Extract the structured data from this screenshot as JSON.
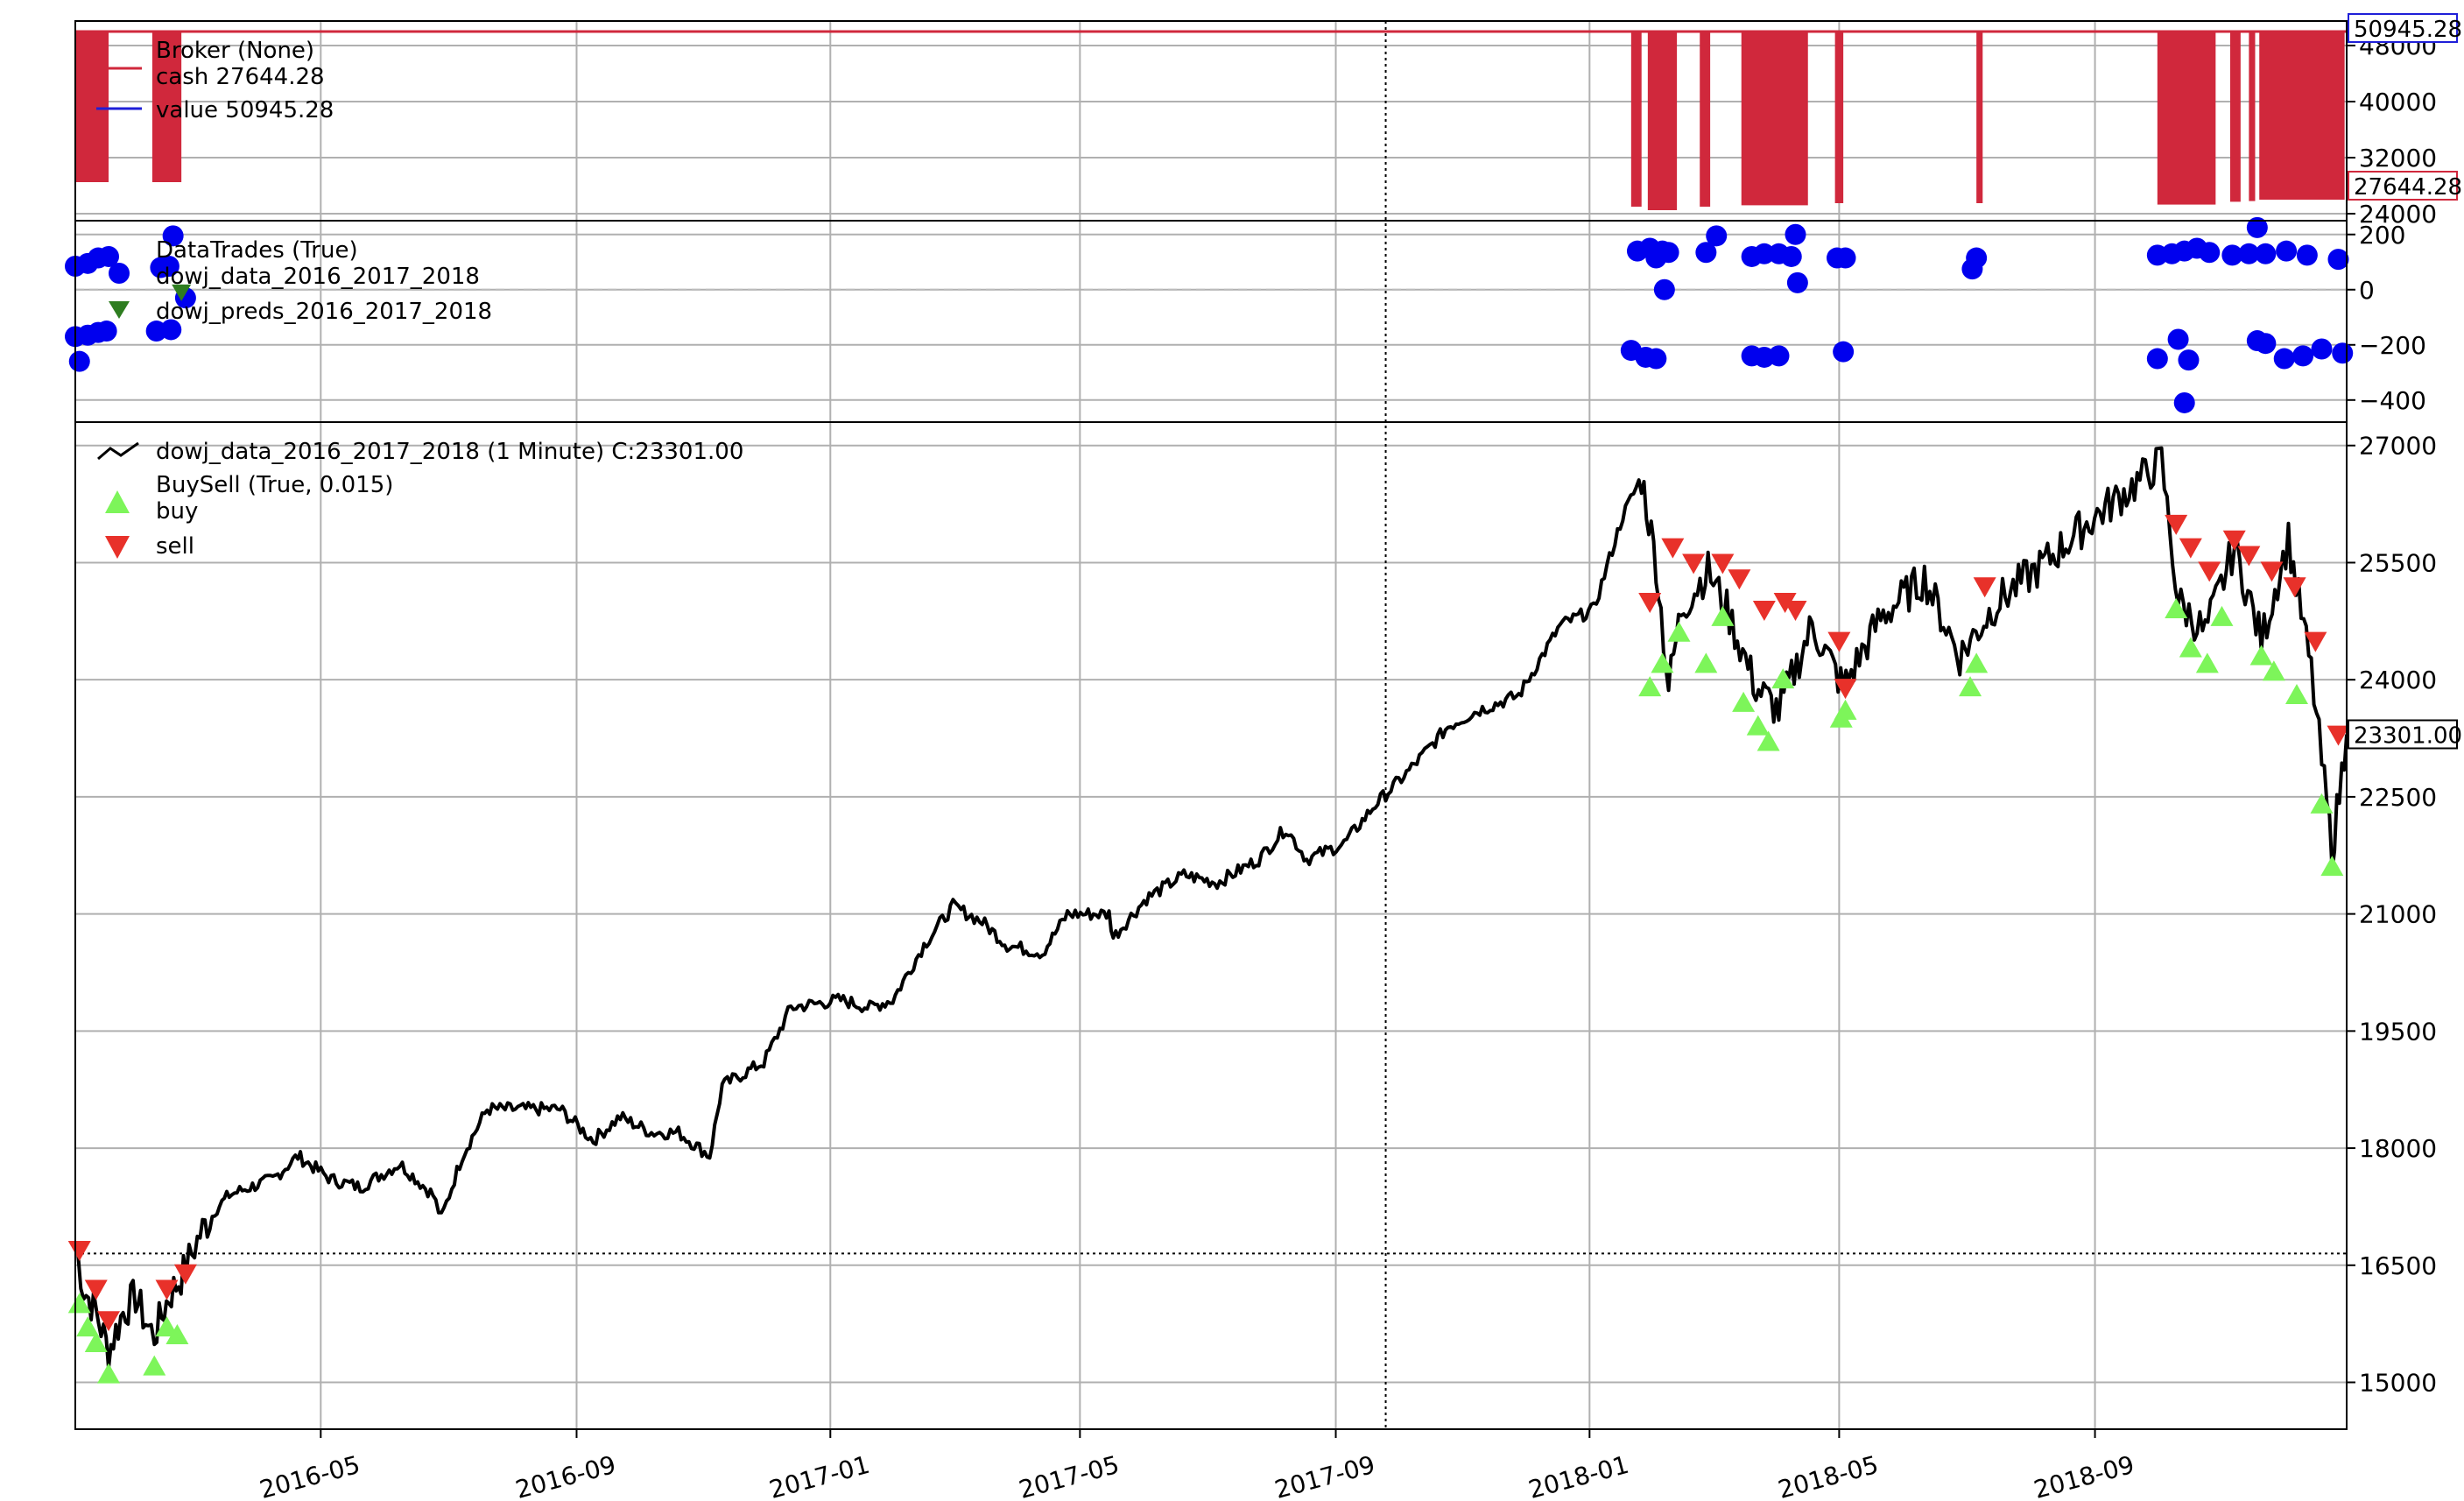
{
  "colors": {
    "cash": "#d0283c",
    "value": "#1f1fd8",
    "close": "#000000",
    "trade_dot": "#0000ee",
    "trade_marker": "#2e7d20",
    "buy": "#7df55a",
    "sell": "#e8312a",
    "grid": "#b0b0b0",
    "frame": "#000000"
  },
  "chart_data": {
    "type": "line",
    "x_ticks": [
      "2016-05",
      "2016-09",
      "2017-01",
      "2017-05",
      "2017-09",
      "2018-01",
      "2018-05",
      "2018-09"
    ],
    "xlim": [
      "2016-01-04",
      "2018-12-31"
    ],
    "vline_date": "2017-09-25",
    "panels": {
      "broker": {
        "title": "Broker (None)",
        "legend": [
          {
            "key": "cash",
            "label": "cash 27644.28"
          },
          {
            "key": "value",
            "label": "value 50945.28"
          }
        ],
        "y_ticks": [
          24000,
          32000,
          40000,
          48000
        ],
        "y_tick_labels": [
          "24000",
          "32000",
          "40000",
          "48000"
        ],
        "ylim": [
          23000,
          51500
        ],
        "value_badge": "50945.28",
        "cash_badge": "27644.28",
        "value_level": 50000,
        "cash_high": 50000,
        "cash_low_levels": [
          24500,
          30500
        ],
        "cash_drop_intervals": [
          [
            "2016-01-04",
            "2016-01-20",
            28500
          ],
          [
            "2016-02-10",
            "2016-02-24",
            28500
          ],
          [
            "2018-01-21",
            "2018-01-26",
            25000
          ],
          [
            "2018-01-29",
            "2018-02-12",
            24500
          ],
          [
            "2018-02-23",
            "2018-02-28",
            25000
          ],
          [
            "2018-03-15",
            "2018-04-16",
            25200
          ],
          [
            "2018-04-29",
            "2018-05-03",
            25500
          ],
          [
            "2018-07-06",
            "2018-07-09",
            25500
          ],
          [
            "2018-10-01",
            "2018-10-29",
            25300
          ],
          [
            "2018-11-05",
            "2018-11-10",
            25700
          ],
          [
            "2018-11-14",
            "2018-11-17",
            25800
          ],
          [
            "2018-11-19",
            "2018-12-30",
            26000
          ]
        ]
      },
      "trades": {
        "title": "DataTrades (True)",
        "legend": [
          {
            "key": "trade_dot",
            "label": "dowj_data_2016_2017_2018"
          },
          {
            "key": "trade_marker",
            "label": "dowj_preds_2016_2017_2018"
          }
        ],
        "y_ticks": [
          -400,
          -200,
          0,
          200
        ],
        "y_tick_labels": [
          "−400",
          "−200",
          "0",
          "200"
        ],
        "ylim": [
          -480,
          250
        ],
        "points": [
          [
            "2016-01-04",
            85
          ],
          [
            "2016-01-10",
            95
          ],
          [
            "2016-01-15",
            115
          ],
          [
            "2016-01-20",
            120
          ],
          [
            "2016-01-04",
            -170
          ],
          [
            "2016-01-10",
            -165
          ],
          [
            "2016-01-15",
            -155
          ],
          [
            "2016-01-19",
            -150
          ],
          [
            "2016-01-06",
            -260
          ],
          [
            "2016-02-12",
            -150
          ],
          [
            "2016-02-19",
            -145
          ],
          [
            "2016-02-14",
            80
          ],
          [
            "2016-02-18",
            85
          ],
          [
            "2016-02-20",
            195
          ],
          [
            "2016-02-26",
            -30
          ],
          [
            "2018-01-24",
            140
          ],
          [
            "2018-01-30",
            150
          ],
          [
            "2018-02-05",
            140
          ],
          [
            "2018-02-08",
            135
          ],
          [
            "2018-02-02",
            115
          ],
          [
            "2018-02-06",
            0
          ],
          [
            "2018-02-26",
            135
          ],
          [
            "2018-03-03",
            195
          ],
          [
            "2018-03-20",
            120
          ],
          [
            "2018-03-26",
            130
          ],
          [
            "2018-04-02",
            130
          ],
          [
            "2018-04-08",
            120
          ],
          [
            "2018-04-10",
            200
          ],
          [
            "2018-04-11",
            25
          ],
          [
            "2018-04-30",
            115
          ],
          [
            "2018-05-04",
            115
          ],
          [
            "2018-01-21",
            -220
          ],
          [
            "2018-01-28",
            -245
          ],
          [
            "2018-02-02",
            -250
          ],
          [
            "2018-03-20",
            -240
          ],
          [
            "2018-03-26",
            -245
          ],
          [
            "2018-04-02",
            -240
          ],
          [
            "2018-05-03",
            -225
          ],
          [
            "2018-07-06",
            115
          ],
          [
            "2018-07-04",
            75
          ],
          [
            "2018-10-01",
            125
          ],
          [
            "2018-10-08",
            130
          ],
          [
            "2018-10-14",
            140
          ],
          [
            "2018-10-20",
            150
          ],
          [
            "2018-10-26",
            135
          ],
          [
            "2018-11-06",
            125
          ],
          [
            "2018-11-14",
            130
          ],
          [
            "2018-11-22",
            130
          ],
          [
            "2018-11-18",
            225
          ],
          [
            "2018-12-02",
            140
          ],
          [
            "2018-12-12",
            125
          ],
          [
            "2018-12-27",
            110
          ],
          [
            "2018-10-01",
            -250
          ],
          [
            "2018-10-11",
            -180
          ],
          [
            "2018-10-16",
            -255
          ],
          [
            "2018-10-14",
            -410
          ],
          [
            "2018-11-18",
            -185
          ],
          [
            "2018-11-22",
            -195
          ],
          [
            "2018-12-01",
            -250
          ],
          [
            "2018-12-10",
            -240
          ],
          [
            "2018-12-19",
            -215
          ],
          [
            "2018-12-29",
            -230
          ]
        ],
        "pred_markers": [
          [
            "2016-02-24",
            -10
          ]
        ]
      },
      "price": {
        "title": "dowj_data_2016_2017_2018 (1 Minute) C:23301.00",
        "legend_title": "BuySell (True, 0.015)",
        "legend": [
          {
            "key": "buy",
            "label": "buy"
          },
          {
            "key": "sell",
            "label": "sell"
          }
        ],
        "y_ticks": [
          15000,
          16500,
          18000,
          19500,
          21000,
          22500,
          24000,
          25500,
          27000
        ],
        "y_tick_labels": [
          "15000",
          "16500",
          "18000",
          "19500",
          "21000",
          "22500",
          "24000",
          "25500",
          "27000"
        ],
        "ylim": [
          14400,
          27300
        ],
        "hline_value": 16650,
        "close_badge": "23301.00",
        "close_points": [
          [
            "2016-01-04",
            16800
          ],
          [
            "2016-01-08",
            16200
          ],
          [
            "2016-01-14",
            15900
          ],
          [
            "2016-01-20",
            15400
          ],
          [
            "2016-01-27",
            15900
          ],
          [
            "2016-02-02",
            16100
          ],
          [
            "2016-02-08",
            15700
          ],
          [
            "2016-02-11",
            15600
          ],
          [
            "2016-02-18",
            16100
          ],
          [
            "2016-02-25",
            16400
          ],
          [
            "2016-03-04",
            16900
          ],
          [
            "2016-03-11",
            17200
          ],
          [
            "2016-03-18",
            17400
          ],
          [
            "2016-03-28",
            17500
          ],
          [
            "2016-04-08",
            17600
          ],
          [
            "2016-04-20",
            17900
          ],
          [
            "2016-05-06",
            17600
          ],
          [
            "2016-05-20",
            17500
          ],
          [
            "2016-06-08",
            17800
          ],
          [
            "2016-06-24",
            17400
          ],
          [
            "2016-06-28",
            17100
          ],
          [
            "2016-07-08",
            17900
          ],
          [
            "2016-07-20",
            18500
          ],
          [
            "2016-08-10",
            18500
          ],
          [
            "2016-08-24",
            18500
          ],
          [
            "2016-09-09",
            18100
          ],
          [
            "2016-09-22",
            18400
          ],
          [
            "2016-10-07",
            18200
          ],
          [
            "2016-10-20",
            18200
          ],
          [
            "2016-11-04",
            17900
          ],
          [
            "2016-11-10",
            18800
          ],
          [
            "2016-11-30",
            19100
          ],
          [
            "2016-12-13",
            19800
          ],
          [
            "2017-01-06",
            19900
          ],
          [
            "2017-01-20",
            19800
          ],
          [
            "2017-01-31",
            19900
          ],
          [
            "2017-02-15",
            20600
          ],
          [
            "2017-03-01",
            21100
          ],
          [
            "2017-03-15",
            20900
          ],
          [
            "2017-03-27",
            20600
          ],
          [
            "2017-04-13",
            20500
          ],
          [
            "2017-04-25",
            21000
          ],
          [
            "2017-05-15",
            21000
          ],
          [
            "2017-05-17",
            20700
          ],
          [
            "2017-06-02",
            21200
          ],
          [
            "2017-06-20",
            21500
          ],
          [
            "2017-07-06",
            21400
          ],
          [
            "2017-07-26",
            21700
          ],
          [
            "2017-08-08",
            22100
          ],
          [
            "2017-08-18",
            21700
          ],
          [
            "2017-09-05",
            21900
          ],
          [
            "2017-09-20",
            22400
          ],
          [
            "2017-10-05",
            22800
          ],
          [
            "2017-10-25",
            23400
          ],
          [
            "2017-11-08",
            23600
          ],
          [
            "2017-11-28",
            23800
          ],
          [
            "2017-12-18",
            24700
          ],
          [
            "2018-01-03",
            24900
          ],
          [
            "2018-01-17",
            26100
          ],
          [
            "2018-01-26",
            26600
          ],
          [
            "2018-02-02",
            25500
          ],
          [
            "2018-02-08",
            23900
          ],
          [
            "2018-02-14",
            24900
          ],
          [
            "2018-02-27",
            25400
          ],
          [
            "2018-03-08",
            24900
          ],
          [
            "2018-03-22",
            23900
          ],
          [
            "2018-04-02",
            23600
          ],
          [
            "2018-04-18",
            24700
          ],
          [
            "2018-05-03",
            23900
          ],
          [
            "2018-05-21",
            24800
          ],
          [
            "2018-06-11",
            25300
          ],
          [
            "2018-06-28",
            24300
          ],
          [
            "2018-07-16",
            25000
          ],
          [
            "2018-08-08",
            25500
          ],
          [
            "2018-08-28",
            26000
          ],
          [
            "2018-09-20",
            26500
          ],
          [
            "2018-10-03",
            26800
          ],
          [
            "2018-10-11",
            25000
          ],
          [
            "2018-10-24",
            24600
          ],
          [
            "2018-11-07",
            25700
          ],
          [
            "2018-11-20",
            24500
          ],
          [
            "2018-12-03",
            25800
          ],
          [
            "2018-12-14",
            24100
          ],
          [
            "2018-12-24",
            21800
          ],
          [
            "2018-12-31",
            23300
          ]
        ],
        "buys": [
          [
            "2016-01-06",
            16000
          ],
          [
            "2016-01-10",
            15700
          ],
          [
            "2016-01-14",
            15500
          ],
          [
            "2016-01-20",
            15100
          ],
          [
            "2016-02-11",
            15200
          ],
          [
            "2016-02-17",
            15700
          ],
          [
            "2016-02-22",
            15600
          ],
          [
            "2018-01-30",
            23900
          ],
          [
            "2018-02-05",
            24200
          ],
          [
            "2018-02-13",
            24600
          ],
          [
            "2018-02-26",
            24200
          ],
          [
            "2018-03-06",
            24800
          ],
          [
            "2018-03-16",
            23700
          ],
          [
            "2018-03-23",
            23400
          ],
          [
            "2018-03-28",
            23200
          ],
          [
            "2018-04-04",
            24000
          ],
          [
            "2018-05-02",
            23500
          ],
          [
            "2018-05-04",
            23600
          ],
          [
            "2018-07-03",
            23900
          ],
          [
            "2018-07-06",
            24200
          ],
          [
            "2018-10-10",
            24900
          ],
          [
            "2018-10-17",
            24400
          ],
          [
            "2018-10-25",
            24200
          ],
          [
            "2018-11-01",
            24800
          ],
          [
            "2018-11-20",
            24300
          ],
          [
            "2018-11-26",
            24100
          ],
          [
            "2018-12-07",
            23800
          ],
          [
            "2018-12-19",
            22400
          ],
          [
            "2018-12-24",
            21600
          ]
        ],
        "sells": [
          [
            "2016-01-06",
            16700
          ],
          [
            "2016-01-14",
            16200
          ],
          [
            "2016-01-20",
            15800
          ],
          [
            "2016-02-17",
            16200
          ],
          [
            "2016-02-26",
            16400
          ],
          [
            "2018-01-30",
            25000
          ],
          [
            "2018-02-10",
            25700
          ],
          [
            "2018-02-20",
            25500
          ],
          [
            "2018-03-06",
            25500
          ],
          [
            "2018-03-14",
            25300
          ],
          [
            "2018-03-26",
            24900
          ],
          [
            "2018-04-05",
            25000
          ],
          [
            "2018-04-10",
            24900
          ],
          [
            "2018-05-01",
            24500
          ],
          [
            "2018-05-04",
            23900
          ],
          [
            "2018-07-10",
            25200
          ],
          [
            "2018-10-10",
            26000
          ],
          [
            "2018-10-17",
            25700
          ],
          [
            "2018-10-26",
            25400
          ],
          [
            "2018-11-07",
            25800
          ],
          [
            "2018-11-14",
            25600
          ],
          [
            "2018-11-25",
            25400
          ],
          [
            "2018-12-06",
            25200
          ],
          [
            "2018-12-16",
            24500
          ],
          [
            "2018-12-27",
            23300
          ]
        ]
      }
    }
  }
}
